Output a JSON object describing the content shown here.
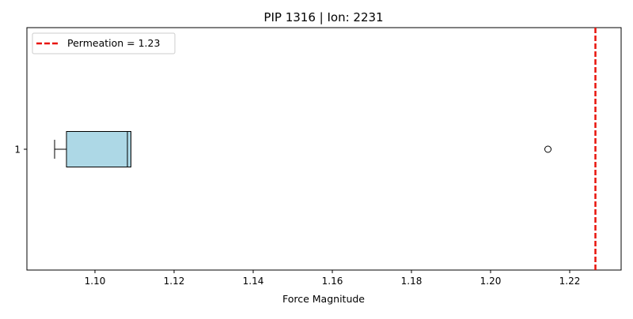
{
  "chart_data": {
    "type": "box",
    "orientation": "horizontal",
    "title": "PIP 1316 | Ion: 2231",
    "xlabel": "Force Magnitude",
    "ylabel": "",
    "xlim": [
      1.0828,
      1.233
    ],
    "x_ticks": [
      1.1,
      1.12,
      1.14,
      1.16,
      1.18,
      1.2,
      1.22
    ],
    "x_tick_labels": [
      "1.10",
      "1.12",
      "1.14",
      "1.16",
      "1.18",
      "1.20",
      "1.22"
    ],
    "y_tick_labels": [
      "1"
    ],
    "box": {
      "category": "1",
      "whisker_low": 1.0898,
      "q1": 1.0928,
      "median": 1.1082,
      "q3": 1.1091,
      "whisker_high": 1.1091,
      "outliers": [
        1.2145
      ]
    },
    "reference_line": {
      "value": 1.2265,
      "label": "Permeation = 1.23",
      "style": "dashed",
      "color": "#e8140c"
    },
    "box_color": "#add8e6",
    "median_color": "#000000",
    "legend_position": "top-left",
    "grid": false
  }
}
